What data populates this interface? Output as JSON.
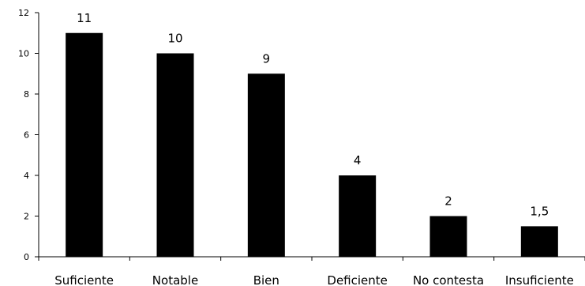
{
  "chart_data": {
    "type": "bar",
    "title": "",
    "xlabel": "",
    "ylabel": "",
    "categories": [
      "Suficiente",
      "Notable",
      "Bien",
      "Deficiente",
      "No contesta",
      "Insuficiente"
    ],
    "values": [
      11,
      10,
      9,
      4,
      2,
      1.5
    ],
    "data_labels": [
      "11",
      "10",
      "9",
      "4",
      "2",
      "1,5"
    ],
    "ylim": [
      0,
      12
    ],
    "yticks": [
      0,
      2,
      4,
      6,
      8,
      10,
      12
    ],
    "grid": false,
    "legend": "none",
    "bar_color": "#000000",
    "axis_color": "#000000"
  }
}
